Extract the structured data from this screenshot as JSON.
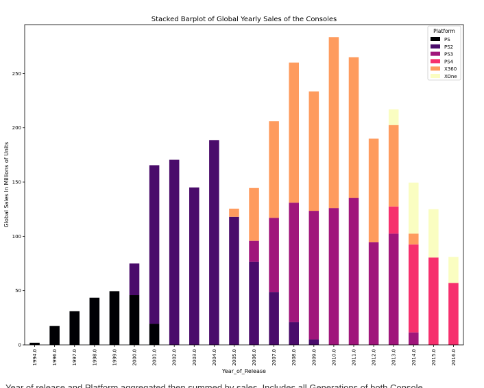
{
  "caption": "Year of release and Platform aggregated then summed by sales. Includes all Generations of both Console",
  "chart_data": {
    "type": "bar",
    "stacked": true,
    "title": "Stacked Barplot of Global Yearly Sales of the Consoles",
    "xlabel": "Year_of_Release",
    "ylabel": "Global Sales In Millions of Units",
    "ylim": [
      0,
      295
    ],
    "yticks": [
      0,
      50,
      100,
      150,
      200,
      250
    ],
    "grid": false,
    "legend_title": "Platform",
    "legend_position": "top-right",
    "categories": [
      "1994.0",
      "1996.0",
      "1997.0",
      "1998.0",
      "1999.0",
      "2000.0",
      "2001.0",
      "2002.0",
      "2003.0",
      "2004.0",
      "2005.0",
      "2006.0",
      "2007.0",
      "2008.0",
      "2009.0",
      "2010.0",
      "2011.0",
      "2012.0",
      "2013.0",
      "2014.0",
      "2015.0",
      "2016.0"
    ],
    "series": [
      {
        "name": "PS",
        "color": "#000004",
        "values": [
          2,
          17.5,
          31,
          43.5,
          49.5,
          46,
          19.5,
          0,
          0,
          0,
          0,
          0,
          0,
          0,
          0,
          0,
          0,
          0,
          0,
          0,
          0,
          0
        ]
      },
      {
        "name": "PS2",
        "color": "#4a0c6b",
        "values": [
          0,
          0,
          0,
          0,
          0,
          29,
          146,
          170.5,
          145,
          188.5,
          118,
          76.5,
          48.5,
          21,
          5,
          0,
          0,
          0,
          0,
          0,
          0,
          0
        ]
      },
      {
        "name": "PS3",
        "color": "#a0167b",
        "values": [
          0,
          0,
          0,
          0,
          0,
          0,
          0,
          0,
          0,
          0,
          0,
          19.5,
          68.5,
          110,
          118.5,
          126,
          135.5,
          94.5,
          102.5,
          11.5,
          0,
          0
        ]
      },
      {
        "name": "PS4",
        "color": "#f6306d",
        "values": [
          0,
          0,
          0,
          0,
          0,
          0,
          0,
          0,
          0,
          0,
          0,
          0,
          0,
          0,
          0,
          0,
          0,
          0,
          25,
          81,
          80.5,
          57
        ]
      },
      {
        "name": "X360",
        "color": "#fe9b5e",
        "values": [
          0,
          0,
          0,
          0,
          0,
          0,
          0,
          0,
          0,
          0,
          7.5,
          48.5,
          89,
          129,
          110,
          157.5,
          129.5,
          95.5,
          75,
          10,
          0,
          0
        ]
      },
      {
        "name": "XOne",
        "color": "#fafdc1",
        "values": [
          0,
          0,
          0,
          0,
          0,
          0,
          0,
          0,
          0,
          0,
          0,
          0,
          0,
          0,
          0,
          0,
          0,
          0,
          14.5,
          47,
          44.5,
          24
        ]
      }
    ]
  }
}
